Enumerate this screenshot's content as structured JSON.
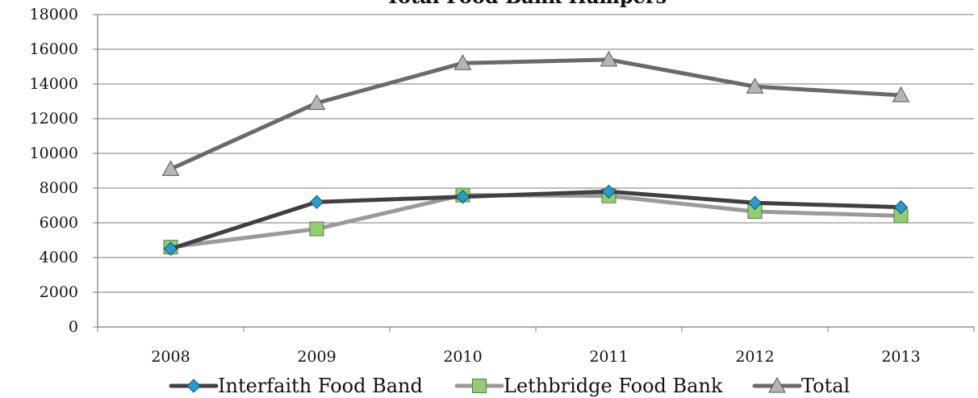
{
  "chart_data": {
    "type": "line",
    "title": "Total Food Bank Hampers",
    "xlabel": "",
    "ylabel": "",
    "categories": [
      "2008",
      "2009",
      "2010",
      "2011",
      "2012",
      "2013"
    ],
    "ylim": [
      0,
      18000
    ],
    "yticks": [
      0,
      2000,
      4000,
      6000,
      8000,
      10000,
      12000,
      14000,
      16000,
      18000
    ],
    "grid": true,
    "legend_position": "bottom",
    "series": [
      {
        "name": "Interfaith Food Band",
        "values": [
          4500,
          7200,
          7500,
          7800,
          7150,
          6900
        ],
        "color": "#404040",
        "marker": "diamond",
        "marker_color": "#1fa0d4"
      },
      {
        "name": "Lethbridge Food Bank",
        "values": [
          4600,
          5650,
          7600,
          7550,
          6650,
          6400
        ],
        "color": "#9a9a9a",
        "marker": "square",
        "marker_color": "#8fcf6f"
      },
      {
        "name": "Total",
        "values": [
          9100,
          12900,
          15200,
          15400,
          13850,
          13350
        ],
        "color": "#6a6a6a",
        "marker": "triangle",
        "marker_color": "#b5b5b5"
      }
    ]
  }
}
